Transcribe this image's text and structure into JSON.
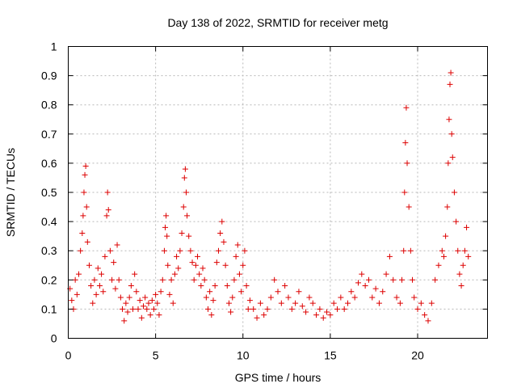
{
  "chart_data": {
    "type": "scatter",
    "title": "Day 138 of 2022, SRMTID for receiver metg",
    "xlabel": "GPS time / hours",
    "ylabel": "SRMTID / TECUs",
    "xlim": [
      0,
      24
    ],
    "ylim": [
      0,
      1
    ],
    "xticks": [
      0,
      5,
      10,
      15,
      20
    ],
    "xtick_labels": [
      "0",
      "5",
      "10",
      "15",
      "20"
    ],
    "yticks": [
      0,
      0.1,
      0.2,
      0.3,
      0.4,
      0.5,
      0.6,
      0.7,
      0.8,
      0.9,
      1
    ],
    "ytick_labels": [
      "0",
      "0.1",
      "0.2",
      "0.3",
      "0.4",
      "0.5",
      "0.6",
      "0.7",
      "0.8",
      "0.9",
      "1"
    ],
    "grid": true,
    "marker": "plus",
    "color": "#dd0000",
    "series": [
      {
        "name": "SRMTID",
        "points": [
          [
            0.1,
            0.17
          ],
          [
            0.2,
            0.13
          ],
          [
            0.3,
            0.1
          ],
          [
            0.4,
            0.2
          ],
          [
            0.5,
            0.15
          ],
          [
            0.6,
            0.22
          ],
          [
            0.7,
            0.3
          ],
          [
            0.8,
            0.36
          ],
          [
            0.85,
            0.42
          ],
          [
            0.9,
            0.5
          ],
          [
            0.95,
            0.56
          ],
          [
            1.0,
            0.59
          ],
          [
            1.05,
            0.45
          ],
          [
            1.1,
            0.33
          ],
          [
            1.2,
            0.25
          ],
          [
            1.3,
            0.18
          ],
          [
            1.4,
            0.12
          ],
          [
            1.5,
            0.2
          ],
          [
            1.6,
            0.15
          ],
          [
            1.7,
            0.24
          ],
          [
            1.8,
            0.18
          ],
          [
            1.9,
            0.22
          ],
          [
            2.0,
            0.16
          ],
          [
            2.1,
            0.28
          ],
          [
            2.2,
            0.42
          ],
          [
            2.25,
            0.5
          ],
          [
            2.3,
            0.44
          ],
          [
            2.4,
            0.3
          ],
          [
            2.5,
            0.2
          ],
          [
            2.6,
            0.26
          ],
          [
            2.7,
            0.17
          ],
          [
            2.8,
            0.32
          ],
          [
            2.9,
            0.2
          ],
          [
            3.0,
            0.14
          ],
          [
            3.1,
            0.1
          ],
          [
            3.2,
            0.06
          ],
          [
            3.3,
            0.12
          ],
          [
            3.4,
            0.09
          ],
          [
            3.5,
            0.14
          ],
          [
            3.6,
            0.18
          ],
          [
            3.7,
            0.1
          ],
          [
            3.8,
            0.22
          ],
          [
            3.9,
            0.16
          ],
          [
            4.0,
            0.1
          ],
          [
            4.1,
            0.13
          ],
          [
            4.2,
            0.07
          ],
          [
            4.3,
            0.11
          ],
          [
            4.4,
            0.14
          ],
          [
            4.5,
            0.1
          ],
          [
            4.6,
            0.12
          ],
          [
            4.7,
            0.08
          ],
          [
            4.8,
            0.13
          ],
          [
            4.9,
            0.1
          ],
          [
            5.0,
            0.15
          ],
          [
            5.1,
            0.12
          ],
          [
            5.2,
            0.08
          ],
          [
            5.3,
            0.16
          ],
          [
            5.4,
            0.2
          ],
          [
            5.5,
            0.3
          ],
          [
            5.55,
            0.38
          ],
          [
            5.6,
            0.42
          ],
          [
            5.65,
            0.35
          ],
          [
            5.7,
            0.25
          ],
          [
            5.8,
            0.15
          ],
          [
            5.9,
            0.2
          ],
          [
            6.0,
            0.12
          ],
          [
            6.1,
            0.22
          ],
          [
            6.2,
            0.28
          ],
          [
            6.3,
            0.24
          ],
          [
            6.4,
            0.3
          ],
          [
            6.5,
            0.36
          ],
          [
            6.6,
            0.45
          ],
          [
            6.65,
            0.55
          ],
          [
            6.7,
            0.58
          ],
          [
            6.75,
            0.5
          ],
          [
            6.8,
            0.42
          ],
          [
            6.9,
            0.35
          ],
          [
            7.0,
            0.3
          ],
          [
            7.1,
            0.26
          ],
          [
            7.2,
            0.2
          ],
          [
            7.3,
            0.25
          ],
          [
            7.4,
            0.28
          ],
          [
            7.5,
            0.22
          ],
          [
            7.6,
            0.18
          ],
          [
            7.7,
            0.24
          ],
          [
            7.8,
            0.2
          ],
          [
            7.9,
            0.14
          ],
          [
            8.0,
            0.1
          ],
          [
            8.1,
            0.16
          ],
          [
            8.2,
            0.08
          ],
          [
            8.3,
            0.13
          ],
          [
            8.4,
            0.18
          ],
          [
            8.5,
            0.26
          ],
          [
            8.6,
            0.3
          ],
          [
            8.7,
            0.36
          ],
          [
            8.8,
            0.4
          ],
          [
            8.9,
            0.33
          ],
          [
            9.0,
            0.25
          ],
          [
            9.1,
            0.18
          ],
          [
            9.2,
            0.12
          ],
          [
            9.3,
            0.09
          ],
          [
            9.4,
            0.14
          ],
          [
            9.5,
            0.2
          ],
          [
            9.6,
            0.28
          ],
          [
            9.7,
            0.32
          ],
          [
            9.8,
            0.22
          ],
          [
            9.9,
            0.16
          ],
          [
            10.0,
            0.25
          ],
          [
            10.1,
            0.3
          ],
          [
            10.2,
            0.18
          ],
          [
            10.3,
            0.1
          ],
          [
            10.4,
            0.13
          ],
          [
            10.6,
            0.1
          ],
          [
            10.8,
            0.07
          ],
          [
            11.0,
            0.12
          ],
          [
            11.2,
            0.08
          ],
          [
            11.4,
            0.1
          ],
          [
            11.6,
            0.14
          ],
          [
            11.8,
            0.2
          ],
          [
            12.0,
            0.16
          ],
          [
            12.2,
            0.12
          ],
          [
            12.4,
            0.18
          ],
          [
            12.6,
            0.14
          ],
          [
            12.8,
            0.1
          ],
          [
            13.0,
            0.12
          ],
          [
            13.2,
            0.16
          ],
          [
            13.4,
            0.11
          ],
          [
            13.6,
            0.09
          ],
          [
            13.8,
            0.14
          ],
          [
            14.0,
            0.12
          ],
          [
            14.2,
            0.08
          ],
          [
            14.4,
            0.1
          ],
          [
            14.6,
            0.07
          ],
          [
            14.8,
            0.09
          ],
          [
            15.0,
            0.08
          ],
          [
            15.2,
            0.12
          ],
          [
            15.4,
            0.1
          ],
          [
            15.6,
            0.14
          ],
          [
            15.8,
            0.1
          ],
          [
            16.0,
            0.12
          ],
          [
            16.2,
            0.16
          ],
          [
            16.4,
            0.14
          ],
          [
            16.6,
            0.19
          ],
          [
            16.8,
            0.22
          ],
          [
            17.0,
            0.18
          ],
          [
            17.2,
            0.2
          ],
          [
            17.4,
            0.14
          ],
          [
            17.6,
            0.17
          ],
          [
            17.8,
            0.12
          ],
          [
            18.0,
            0.16
          ],
          [
            18.2,
            0.22
          ],
          [
            18.4,
            0.28
          ],
          [
            18.6,
            0.2
          ],
          [
            18.8,
            0.14
          ],
          [
            19.0,
            0.12
          ],
          [
            19.1,
            0.2
          ],
          [
            19.2,
            0.3
          ],
          [
            19.25,
            0.5
          ],
          [
            19.3,
            0.67
          ],
          [
            19.35,
            0.79
          ],
          [
            19.4,
            0.6
          ],
          [
            19.5,
            0.45
          ],
          [
            19.6,
            0.3
          ],
          [
            19.7,
            0.2
          ],
          [
            19.8,
            0.14
          ],
          [
            20.0,
            0.1
          ],
          [
            20.2,
            0.12
          ],
          [
            20.4,
            0.08
          ],
          [
            20.6,
            0.06
          ],
          [
            20.8,
            0.12
          ],
          [
            21.0,
            0.2
          ],
          [
            21.2,
            0.25
          ],
          [
            21.4,
            0.3
          ],
          [
            21.5,
            0.28
          ],
          [
            21.6,
            0.35
          ],
          [
            21.7,
            0.45
          ],
          [
            21.75,
            0.6
          ],
          [
            21.8,
            0.75
          ],
          [
            21.85,
            0.87
          ],
          [
            21.9,
            0.91
          ],
          [
            21.95,
            0.7
          ],
          [
            22.0,
            0.62
          ],
          [
            22.1,
            0.5
          ],
          [
            22.2,
            0.4
          ],
          [
            22.3,
            0.3
          ],
          [
            22.4,
            0.22
          ],
          [
            22.5,
            0.18
          ],
          [
            22.6,
            0.25
          ],
          [
            22.7,
            0.3
          ],
          [
            22.8,
            0.38
          ],
          [
            22.9,
            0.28
          ]
        ]
      }
    ]
  }
}
